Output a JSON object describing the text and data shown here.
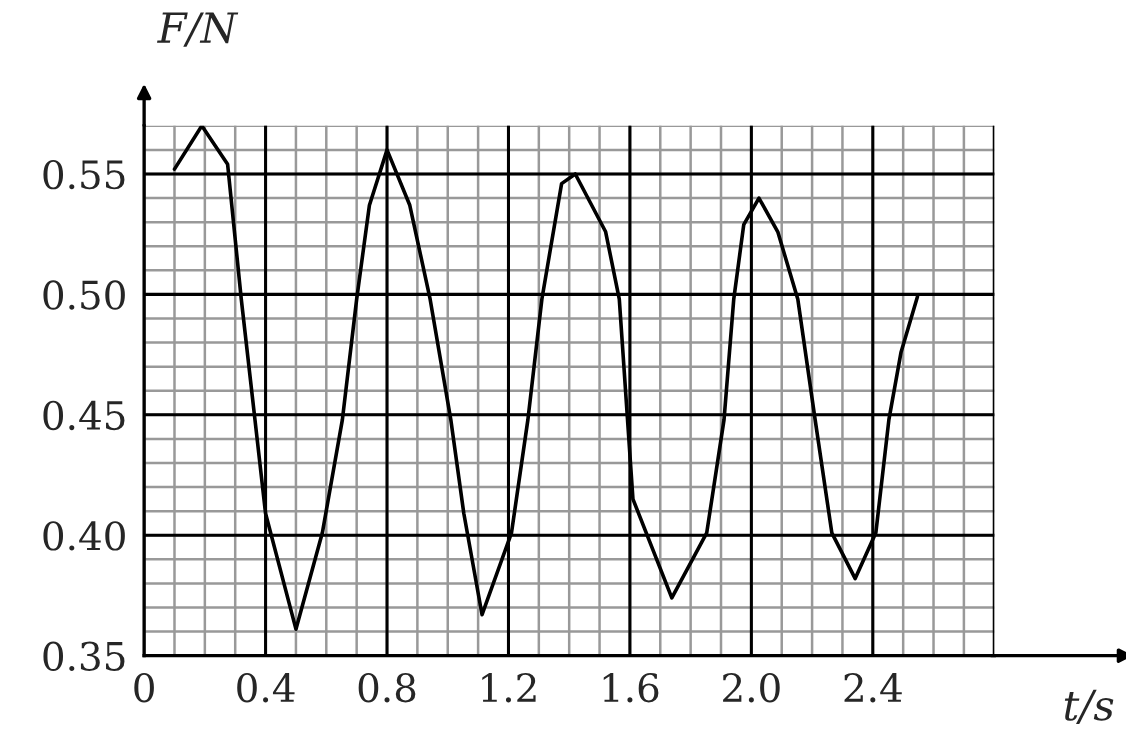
{
  "chart_data": {
    "type": "line",
    "xlabel": "t/s",
    "ylabel": "F/N",
    "x": [
      0.1,
      0.19,
      0.275,
      0.32,
      0.365,
      0.4,
      0.5,
      0.587,
      0.653,
      0.7,
      0.742,
      0.8,
      0.875,
      0.942,
      1.01,
      1.053,
      1.113,
      1.21,
      1.264,
      1.31,
      1.375,
      1.42,
      1.52,
      1.565,
      1.61,
      1.738,
      1.853,
      1.91,
      1.942,
      1.975,
      2.025,
      2.087,
      2.153,
      2.21,
      2.265,
      2.342,
      2.41,
      2.453,
      2.493,
      2.547
    ],
    "series": [
      {
        "color": "#000000",
        "values": [
          0.552,
          0.57,
          0.554,
          0.498,
          0.448,
          0.409,
          0.361,
          0.401,
          0.448,
          0.498,
          0.537,
          0.56,
          0.537,
          0.498,
          0.448,
          0.409,
          0.367,
          0.401,
          0.448,
          0.498,
          0.546,
          0.55,
          0.526,
          0.498,
          0.415,
          0.374,
          0.401,
          0.448,
          0.498,
          0.529,
          0.54,
          0.526,
          0.498,
          0.448,
          0.401,
          0.382,
          0.401,
          0.448,
          0.476,
          0.499
        ]
      }
    ],
    "xlim": [
      0,
      2.8
    ],
    "ylim": [
      0.35,
      0.57
    ],
    "xticks": [
      0,
      0.4,
      0.8,
      1.2,
      1.6,
      {
        "value": 2,
        "label": "2.0"
      },
      2.4
    ],
    "yticks": [
      0.35,
      {
        "value": 0.4,
        "label": "0.40"
      },
      0.45,
      {
        "value": 0.5,
        "label": "0.50"
      },
      0.55
    ],
    "grid": true,
    "marker": "none",
    "line_style": "solid",
    "legend": false
  }
}
